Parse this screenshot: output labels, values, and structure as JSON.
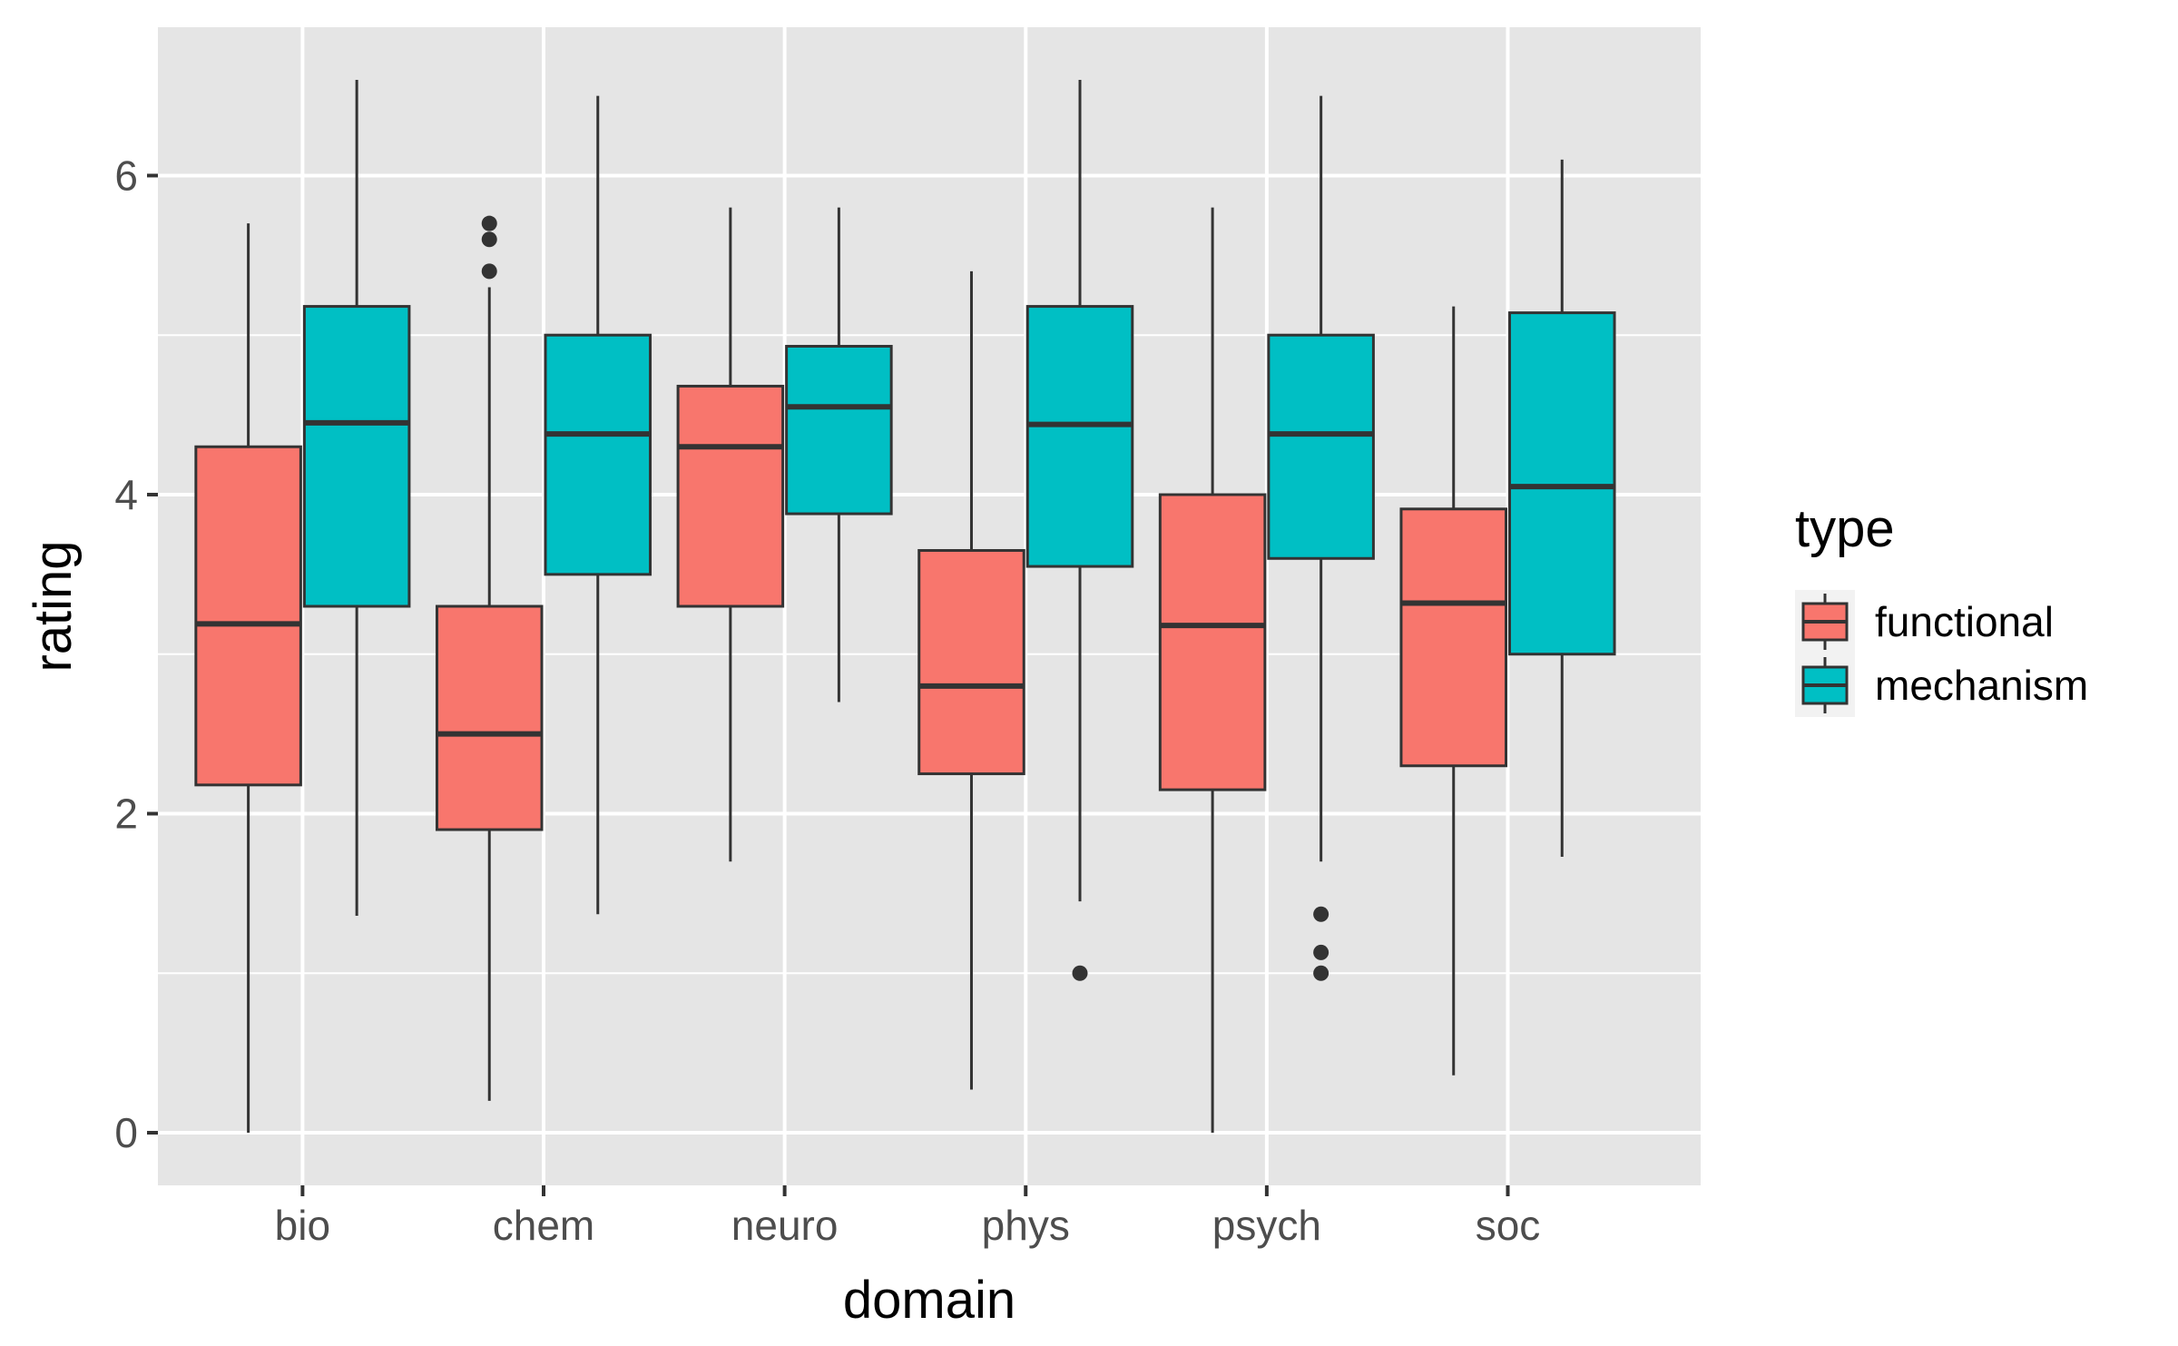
{
  "chart_data": {
    "type": "box",
    "xlabel": "domain",
    "ylabel": "rating",
    "ylim": [
      -0.33,
      6.93
    ],
    "yticks": [
      0,
      2,
      4,
      6
    ],
    "grid": true,
    "legend": {
      "title": "type",
      "placement": "right"
    },
    "categories": [
      "bio",
      "chem",
      "neuro",
      "phys",
      "psych",
      "soc"
    ],
    "series": [
      {
        "name": "functional",
        "color": "#F8766D",
        "boxes": [
          {
            "category": "bio",
            "whisker_low": 0.0,
            "q1": 2.18,
            "median": 3.19,
            "q3": 4.3,
            "whisker_high": 5.7,
            "outliers": []
          },
          {
            "category": "chem",
            "whisker_low": 0.2,
            "q1": 1.9,
            "median": 2.5,
            "q3": 3.3,
            "whisker_high": 5.3,
            "outliers": [
              5.4,
              5.6,
              5.7
            ]
          },
          {
            "category": "neuro",
            "whisker_low": 1.7,
            "q1": 3.3,
            "median": 4.3,
            "q3": 4.68,
            "whisker_high": 5.8,
            "outliers": []
          },
          {
            "category": "phys",
            "whisker_low": 0.27,
            "q1": 2.25,
            "median": 2.8,
            "q3": 3.65,
            "whisker_high": 5.4,
            "outliers": []
          },
          {
            "category": "psych",
            "whisker_low": 0.0,
            "q1": 2.15,
            "median": 3.18,
            "q3": 4.0,
            "whisker_high": 5.8,
            "outliers": []
          },
          {
            "category": "soc",
            "whisker_low": 0.36,
            "q1": 2.3,
            "median": 3.32,
            "q3": 3.91,
            "whisker_high": 5.18,
            "outliers": []
          }
        ]
      },
      {
        "name": "mechanism",
        "color": "#00BFC4",
        "boxes": [
          {
            "category": "bio",
            "whisker_low": 1.36,
            "q1": 3.3,
            "median": 4.45,
            "q3": 5.18,
            "whisker_high": 6.6,
            "outliers": []
          },
          {
            "category": "chem",
            "whisker_low": 1.37,
            "q1": 3.5,
            "median": 4.38,
            "q3": 5.0,
            "whisker_high": 6.5,
            "outliers": []
          },
          {
            "category": "neuro",
            "whisker_low": 2.7,
            "q1": 3.88,
            "median": 4.55,
            "q3": 4.93,
            "whisker_high": 5.8,
            "outliers": []
          },
          {
            "category": "phys",
            "whisker_low": 1.45,
            "q1": 3.55,
            "median": 4.44,
            "q3": 5.18,
            "whisker_high": 6.6,
            "outliers": [
              1.0
            ]
          },
          {
            "category": "psych",
            "whisker_low": 1.7,
            "q1": 3.6,
            "median": 4.38,
            "q3": 5.0,
            "whisker_high": 6.5,
            "outliers": [
              1.0,
              1.13,
              1.37
            ]
          },
          {
            "category": "soc",
            "whisker_low": 1.73,
            "q1": 3.0,
            "median": 4.05,
            "q3": 5.14,
            "whisker_high": 6.1,
            "outliers": []
          }
        ]
      }
    ]
  }
}
